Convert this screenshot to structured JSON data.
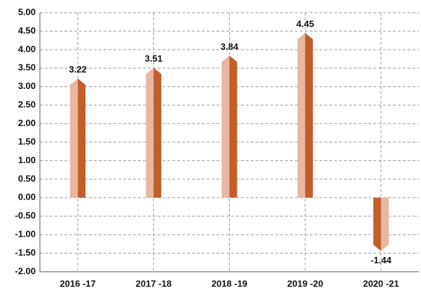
{
  "chart_data": {
    "type": "arrow-bar",
    "categories": [
      "2016 -17",
      "2017 -18",
      "2018 -19",
      "2019 -20",
      "2020 -21"
    ],
    "values": [
      3.22,
      3.51,
      3.84,
      4.45,
      -1.44
    ],
    "colors": {
      "light": "#e6b7a1",
      "dark": "#c25e2c"
    },
    "ylim": [
      -2,
      5
    ],
    "yticks": [
      {
        "value": -2,
        "label": "-2.00"
      },
      {
        "value": -1.5,
        "label": "-1.50"
      },
      {
        "value": -1,
        "label": "-1.00"
      },
      {
        "value": -0.5,
        "label": "-0.50"
      },
      {
        "value": 0,
        "label": "0.00"
      },
      {
        "value": 0.5,
        "label": "0.50"
      },
      {
        "value": 1,
        "label": "1.00"
      },
      {
        "value": 1.5,
        "label": "1.50"
      },
      {
        "value": 2,
        "label": "2.00"
      },
      {
        "value": 2.5,
        "label": "2.50"
      },
      {
        "value": 3,
        "label": "3.00"
      },
      {
        "value": 3.5,
        "label": "3.50"
      },
      {
        "value": 4,
        "label": "4.00"
      },
      {
        "value": 4.5,
        "label": "4.50"
      },
      {
        "value": 5,
        "label": "5.00"
      }
    ],
    "grid": true
  }
}
